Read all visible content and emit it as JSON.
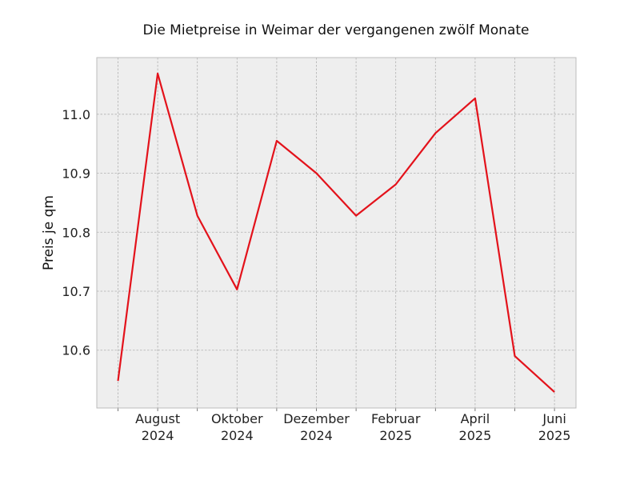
{
  "chart_data": {
    "type": "line",
    "title": "Die Mietpreise in Weimar der vergangenen zwölf Monate",
    "xlabel": "",
    "ylabel": "Preis je qm",
    "x": [
      "2024-07",
      "2024-08",
      "2024-09",
      "2024-10",
      "2024-11",
      "2024-12",
      "2025-01",
      "2025-02",
      "2025-03",
      "2025-04",
      "2025-05",
      "2025-06"
    ],
    "x_tick_labels": [
      {
        "month": "2024-08",
        "line1": "August",
        "line2": "2024"
      },
      {
        "month": "2024-10",
        "line1": "Oktober",
        "line2": "2024"
      },
      {
        "month": "2024-12",
        "line1": "Dezember",
        "line2": "2024"
      },
      {
        "month": "2025-02",
        "line1": "Februar",
        "line2": "2025"
      },
      {
        "month": "2025-04",
        "line1": "April",
        "line2": "2025"
      },
      {
        "month": "2025-06",
        "line1": "Juni",
        "line2": "2025"
      }
    ],
    "series": [
      {
        "values": [
          10.548,
          11.069,
          10.828,
          10.703,
          10.955,
          10.9,
          10.828,
          10.881,
          10.968,
          11.027,
          10.59,
          10.529
        ]
      }
    ],
    "ylim": [
      10.502,
      11.096
    ],
    "y_ticks": [
      10.6,
      10.7,
      10.8,
      10.9,
      11.0
    ],
    "y_tick_labels": [
      "10.6",
      "10.7",
      "10.8",
      "10.9",
      "11.0"
    ],
    "grid": true,
    "colors": {
      "line": "#e3121b",
      "plot_background": "#eeeeee",
      "grid": "#b0b0b0",
      "frame": "#bcbcbc"
    }
  }
}
